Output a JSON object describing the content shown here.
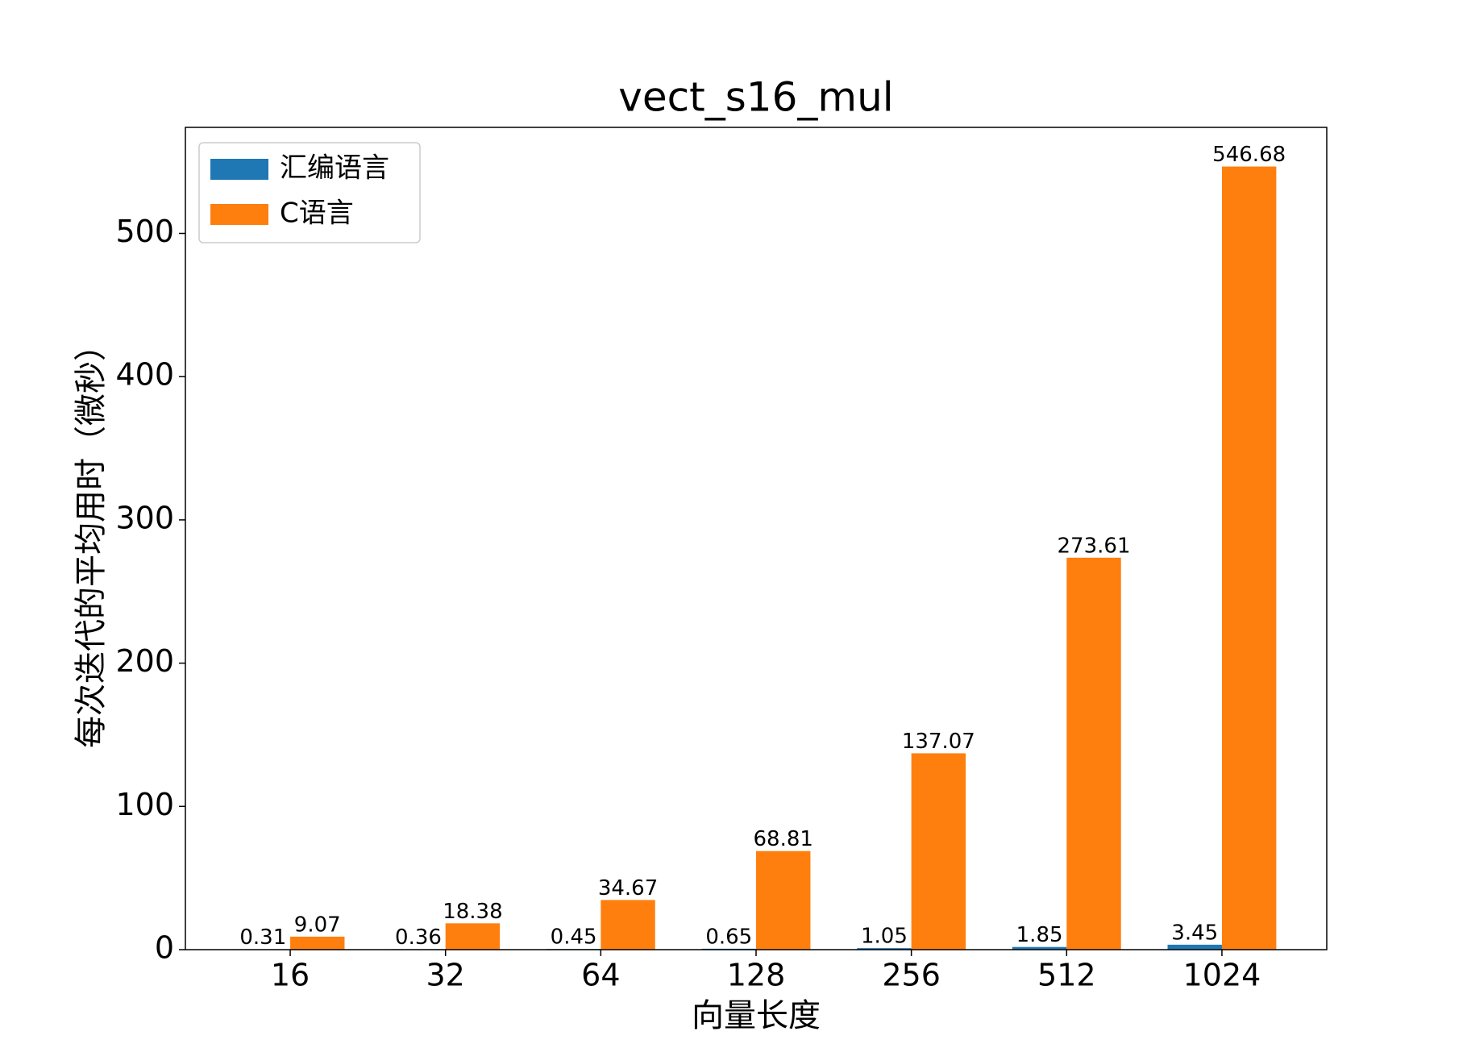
{
  "chart_data": {
    "type": "bar",
    "title": "vect_s16_mul",
    "x_label": "向量长度",
    "y_label": "每次迭代的平均用时（微秒）",
    "categories": [
      "16",
      "32",
      "64",
      "128",
      "256",
      "512",
      "1024"
    ],
    "series": [
      {
        "name": "汇编语言",
        "color": "#1f77b4",
        "values": [
          0.31,
          0.36,
          0.45,
          0.65,
          1.05,
          1.85,
          3.45
        ]
      },
      {
        "name": "C语言",
        "color": "#ff7f0e",
        "values": [
          9.07,
          18.38,
          34.67,
          68.81,
          137.07,
          273.61,
          546.68
        ]
      }
    ],
    "ylim": [
      0,
      574.01
    ],
    "yticks": [
      0,
      100,
      200,
      300,
      400,
      500
    ],
    "legend": "upper left"
  }
}
